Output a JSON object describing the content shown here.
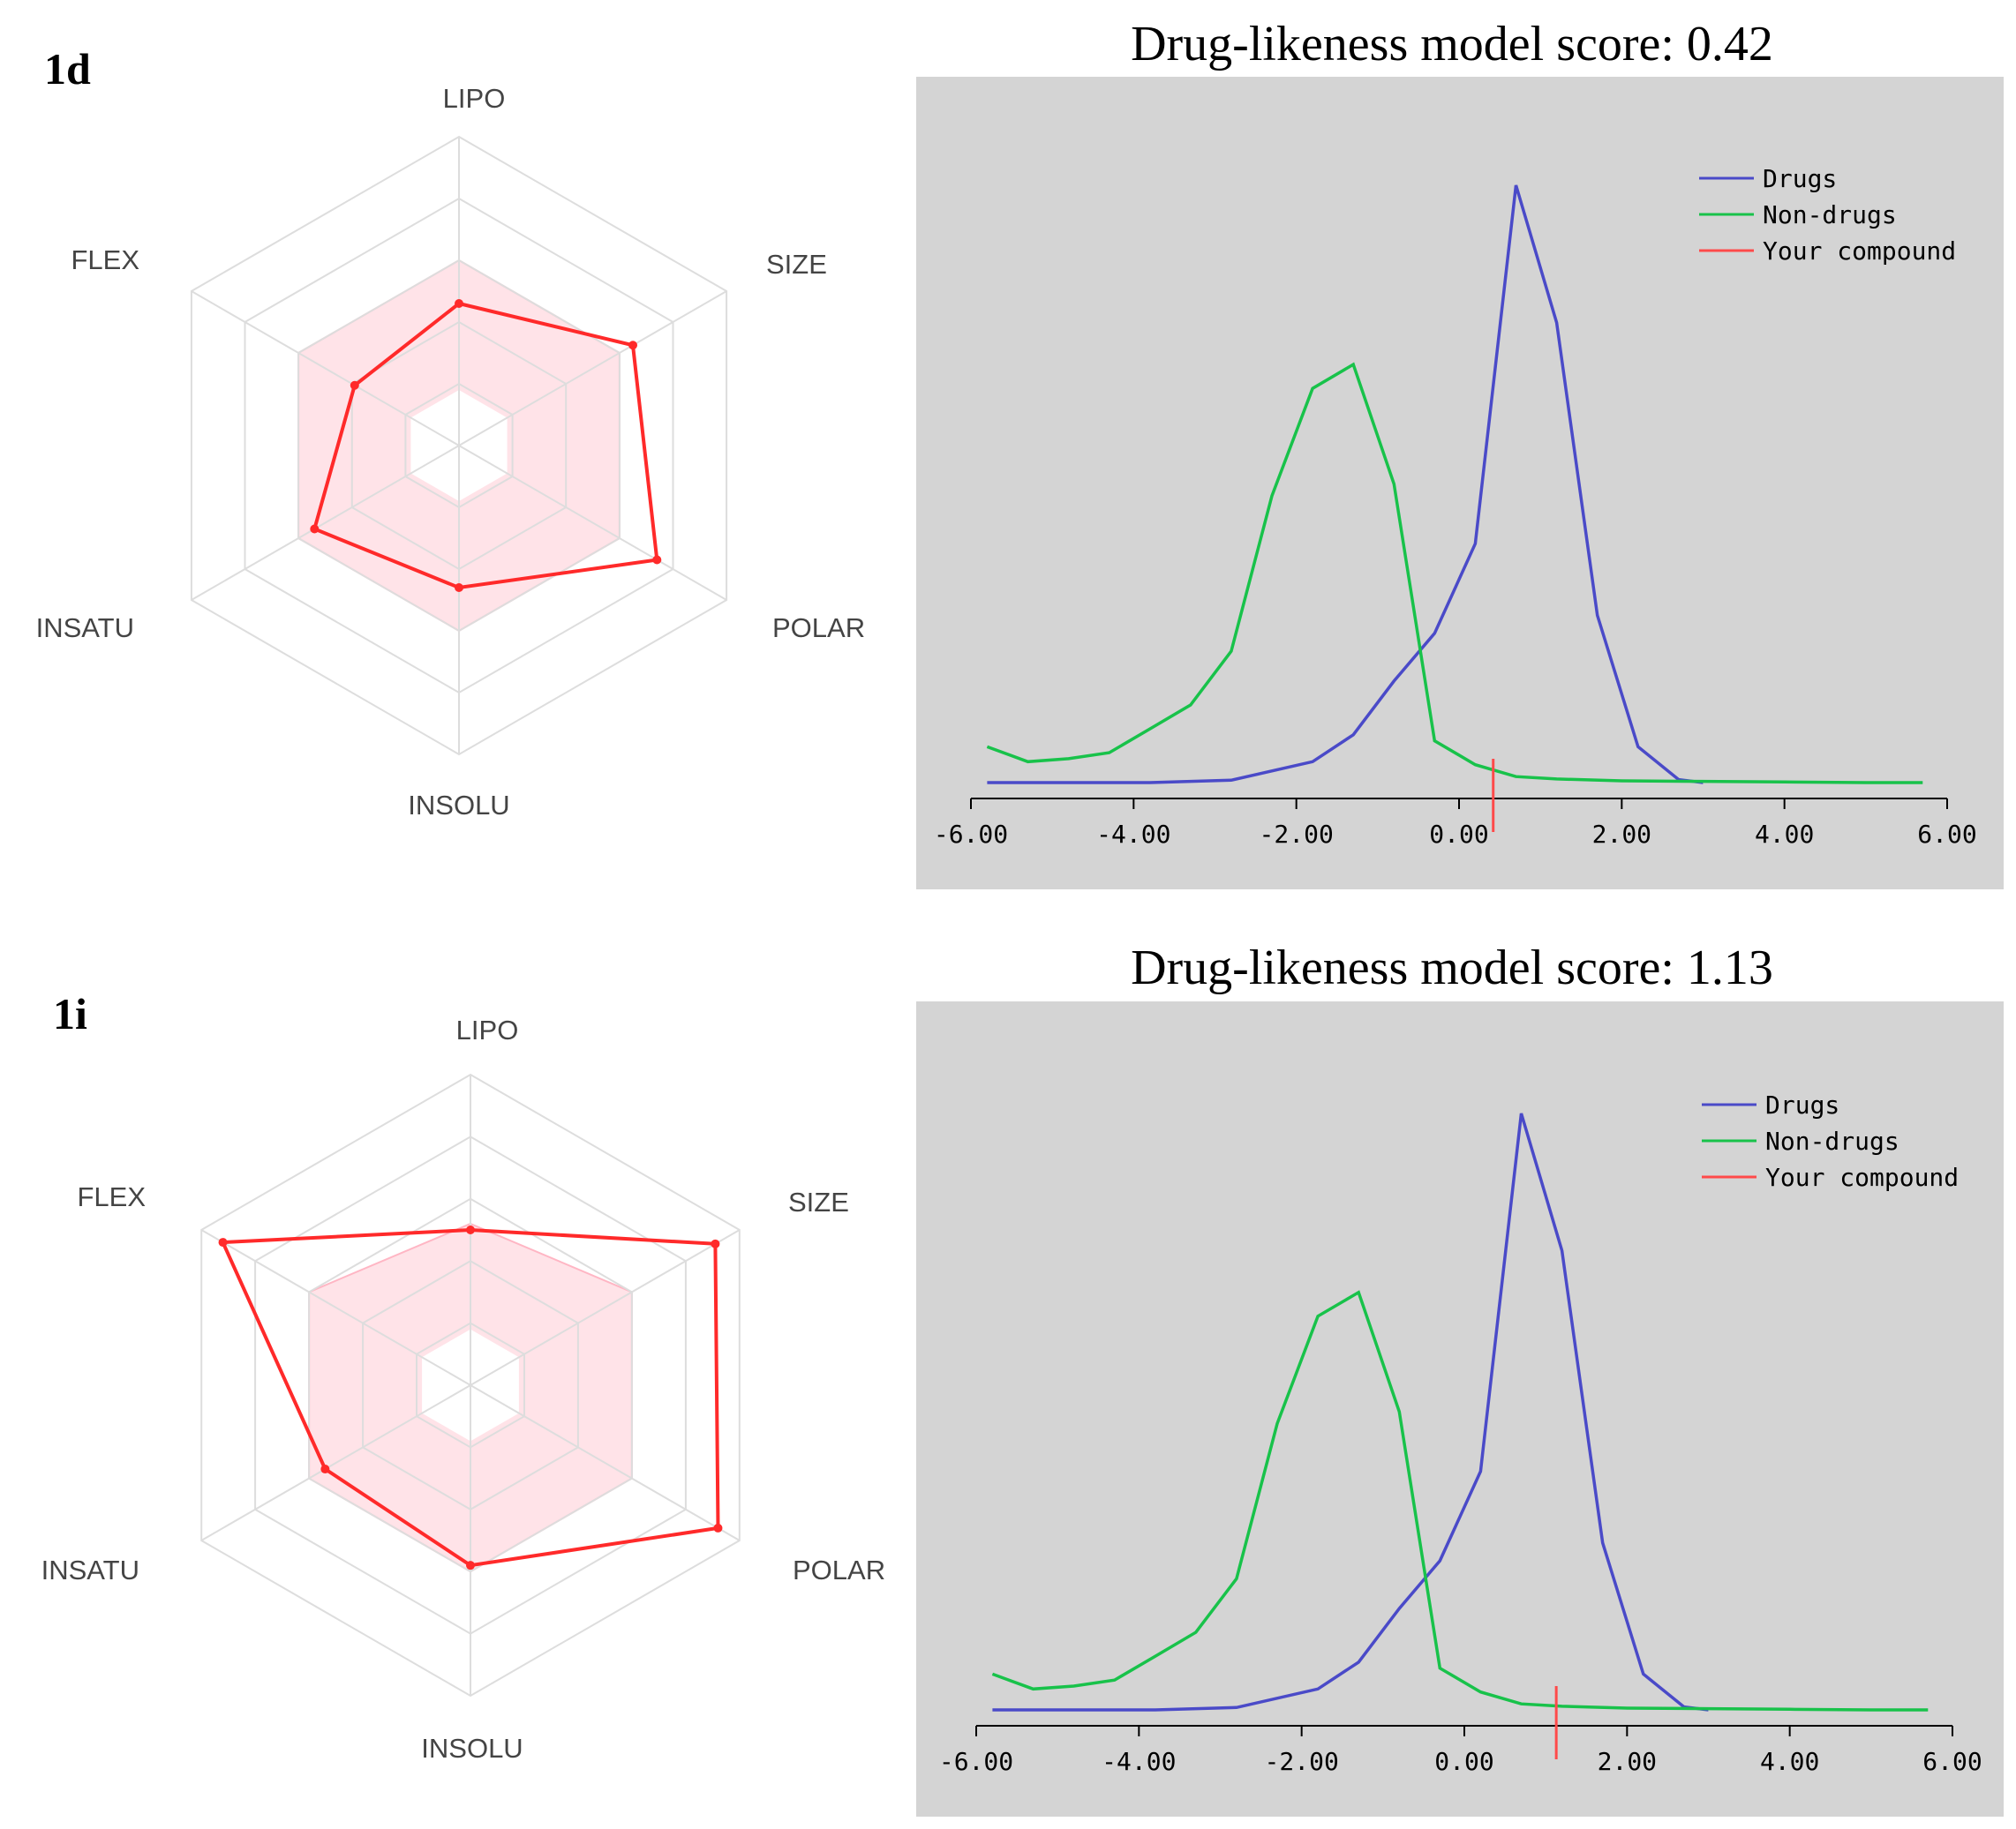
{
  "colors": {
    "drugs": "#4a4ac8",
    "non_drugs": "#18c24a",
    "your_compound": "#ff4a4a",
    "radar_line": "#ff2a2a",
    "radar_fill": "#ffd9e0",
    "plot_bg": "#d4d4d4",
    "grid": "#dddddd"
  },
  "chart_data": [
    {
      "id": "1d",
      "type": "radar",
      "panel_label": "1d",
      "axes": [
        "LIPO",
        "SIZE",
        "POLAR",
        "INSOLU",
        "INSATU",
        "FLEX"
      ],
      "values": [
        0.46,
        0.65,
        0.74,
        0.46,
        0.54,
        0.39
      ],
      "optimal_range": [
        0.6,
        0.6,
        0.6,
        0.6,
        0.6,
        0.6
      ],
      "inner_range": 0.18
    },
    {
      "id": "1d_dl",
      "type": "line",
      "title": "Drug-likeness model score: 0.42",
      "xlim": [
        -6,
        6
      ],
      "ylim": [
        0,
        1
      ],
      "x_ticks": [
        "-6.00",
        "-4.00",
        "-2.00",
        "0.00",
        "2.00",
        "4.00",
        "6.00"
      ],
      "legend": [
        "Drugs",
        "Non-drugs",
        "Your compound"
      ],
      "series": [
        {
          "name": "Drugs",
          "x": [
            -5.8,
            -4.8,
            -3.8,
            -2.8,
            -1.8,
            -1.3,
            -0.8,
            -0.3,
            0.2,
            0.7,
            1.2,
            1.7,
            2.2,
            2.7,
            3.0
          ],
          "y": [
            0.0,
            0.0,
            0.0,
            0.004,
            0.035,
            0.08,
            0.17,
            0.25,
            0.4,
            1.0,
            0.77,
            0.28,
            0.06,
            0.005,
            0.0
          ]
        },
        {
          "name": "Non-drugs",
          "x": [
            -5.8,
            -5.3,
            -4.8,
            -4.3,
            -3.8,
            -3.3,
            -2.8,
            -2.3,
            -1.8,
            -1.3,
            -0.8,
            -0.3,
            0.2,
            0.7,
            1.2,
            2.0,
            3.0,
            4.0,
            5.0,
            5.7
          ],
          "y": [
            0.06,
            0.035,
            0.04,
            0.05,
            0.09,
            0.13,
            0.22,
            0.48,
            0.66,
            0.7,
            0.5,
            0.07,
            0.03,
            0.01,
            0.006,
            0.003,
            0.002,
            0.001,
            0.0,
            0.0
          ]
        }
      ],
      "your_compound": 0.42
    },
    {
      "id": "1i",
      "type": "radar",
      "panel_label": "1i",
      "axes": [
        "LIPO",
        "SIZE",
        "POLAR",
        "INSOLU",
        "INSATU",
        "FLEX"
      ],
      "values": [
        0.5,
        0.91,
        0.92,
        0.58,
        0.54,
        0.92
      ],
      "optimal_range": [
        0.52,
        0.6,
        0.6,
        0.6,
        0.6,
        0.6
      ],
      "inner_range": 0.18
    },
    {
      "id": "1i_dl",
      "type": "line",
      "title": "Drug-likeness model score: 1.13",
      "xlim": [
        -6,
        6
      ],
      "ylim": [
        0,
        1
      ],
      "x_ticks": [
        "-6.00",
        "-4.00",
        "-2.00",
        "0.00",
        "2.00",
        "4.00",
        "6.00"
      ],
      "legend": [
        "Drugs",
        "Non-drugs",
        "Your compound"
      ],
      "series": [
        {
          "name": "Drugs",
          "x": [
            -5.8,
            -4.8,
            -3.8,
            -2.8,
            -1.8,
            -1.3,
            -0.8,
            -0.3,
            0.2,
            0.7,
            1.2,
            1.7,
            2.2,
            2.7,
            3.0
          ],
          "y": [
            0.0,
            0.0,
            0.0,
            0.004,
            0.035,
            0.08,
            0.17,
            0.25,
            0.4,
            1.0,
            0.77,
            0.28,
            0.06,
            0.005,
            0.0
          ]
        },
        {
          "name": "Non-drugs",
          "x": [
            -5.8,
            -5.3,
            -4.8,
            -4.3,
            -3.8,
            -3.3,
            -2.8,
            -2.3,
            -1.8,
            -1.3,
            -0.8,
            -0.3,
            0.2,
            0.7,
            1.2,
            2.0,
            3.0,
            4.0,
            5.0,
            5.7
          ],
          "y": [
            0.06,
            0.035,
            0.04,
            0.05,
            0.09,
            0.13,
            0.22,
            0.48,
            0.66,
            0.7,
            0.5,
            0.07,
            0.03,
            0.01,
            0.006,
            0.003,
            0.002,
            0.001,
            0.0,
            0.0
          ]
        }
      ],
      "your_compound": 1.13
    }
  ]
}
